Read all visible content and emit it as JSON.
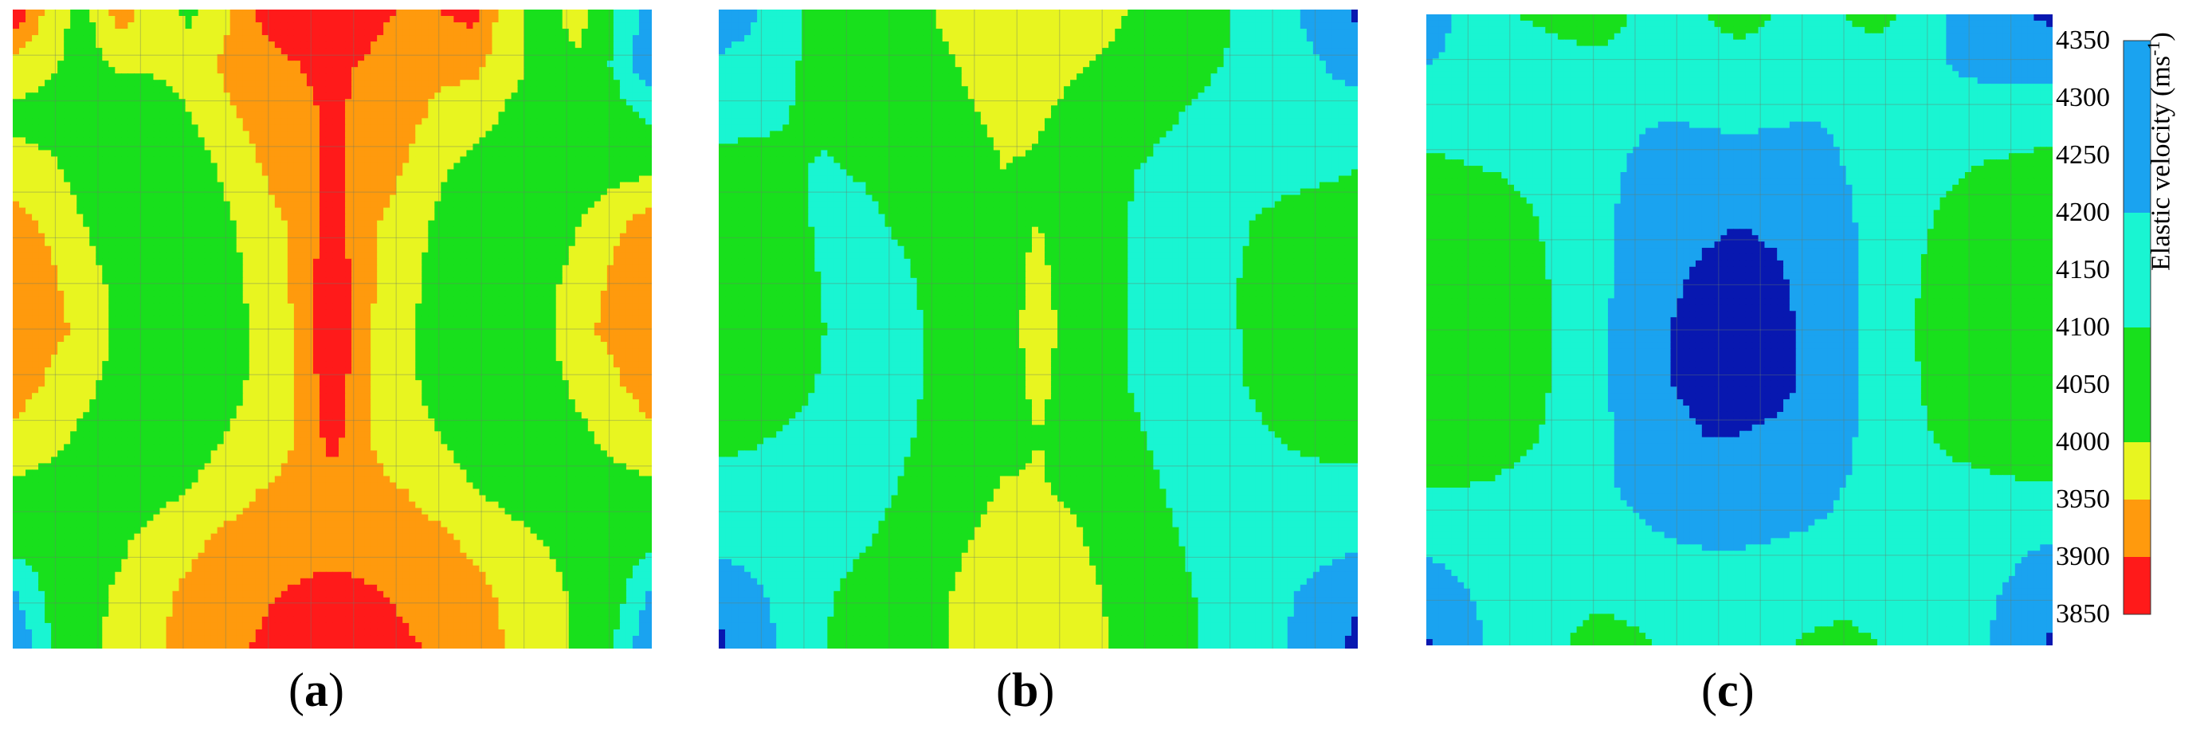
{
  "chart_data": [
    {
      "type": "heatmap",
      "panel_label": "a",
      "grid": true,
      "field": [
        [
          3850,
          3970,
          4020,
          3920,
          3980,
          4010,
          3960,
          3890,
          3870,
          3860,
          3880,
          3905,
          3900,
          3880,
          3990,
          4020,
          3970,
          4100,
          4250
        ],
        [
          3970,
          3990,
          4020,
          3990,
          3990,
          3980,
          3940,
          3915,
          3900,
          3890,
          3905,
          3930,
          3940,
          3940,
          3980,
          4020,
          4010,
          4120,
          4300
        ],
        [
          4010,
          4020,
          4030,
          4040,
          4030,
          4000,
          3960,
          3930,
          3915,
          3890,
          3915,
          3935,
          3960,
          3970,
          4010,
          4030,
          4040,
          4060,
          4120
        ],
        [
          3980,
          3990,
          4020,
          4050,
          4060,
          4030,
          3990,
          3950,
          3920,
          3890,
          3920,
          3950,
          3990,
          4020,
          4050,
          4060,
          4040,
          4020,
          4010
        ],
        [
          3925,
          3960,
          4000,
          4040,
          4060,
          4050,
          4010,
          3970,
          3940,
          3880,
          3940,
          3970,
          4010,
          4050,
          4060,
          4040,
          4000,
          3960,
          3925
        ],
        [
          3910,
          3940,
          3975,
          4020,
          4050,
          4050,
          4020,
          3980,
          3940,
          3860,
          3940,
          3980,
          4020,
          4050,
          4050,
          4020,
          3975,
          3940,
          3910
        ],
        [
          3910,
          3935,
          3960,
          4010,
          4050,
          4050,
          4020,
          3990,
          3945,
          3855,
          3945,
          3990,
          4020,
          4050,
          4050,
          4010,
          3960,
          3935,
          3910
        ],
        [
          3925,
          3955,
          3985,
          4020,
          4050,
          4050,
          4020,
          3985,
          3950,
          3860,
          3950,
          3985,
          4020,
          4050,
          4050,
          4020,
          3985,
          3955,
          3925
        ],
        [
          3960,
          3980,
          4010,
          4030,
          4040,
          4030,
          4000,
          3975,
          3950,
          3880,
          3950,
          3975,
          4000,
          4030,
          4040,
          4030,
          4010,
          3980,
          3960
        ],
        [
          4010,
          4020,
          4030,
          4030,
          4020,
          4000,
          3970,
          3950,
          3940,
          3925,
          3940,
          3950,
          3970,
          4000,
          4020,
          4030,
          4030,
          4020,
          4010
        ],
        [
          4060,
          4050,
          4030,
          4010,
          3980,
          3960,
          3940,
          3925,
          3915,
          3910,
          3915,
          3925,
          3940,
          3960,
          3980,
          4000,
          4020,
          4040,
          4080
        ],
        [
          4220,
          4080,
          4020,
          3990,
          3960,
          3940,
          3920,
          3905,
          3895,
          3890,
          3895,
          3905,
          3915,
          3935,
          3960,
          3985,
          4010,
          4060,
          4220
        ],
        [
          4300,
          4120,
          4010,
          3990,
          3960,
          3930,
          3910,
          3895,
          3880,
          3850,
          3880,
          3895,
          3905,
          3925,
          3955,
          3980,
          4010,
          4120,
          4300
        ]
      ]
    },
    {
      "type": "heatmap",
      "panel_label": "b",
      "grid": true,
      "field": [
        [
          4300,
          4220,
          4120,
          4060,
          4030,
          4010,
          4000,
          3980,
          3960,
          3965,
          3980,
          3990,
          4010,
          4040,
          4080,
          4120,
          4180,
          4250,
          4320
        ],
        [
          4180,
          4150,
          4110,
          4070,
          4040,
          4020,
          4010,
          3995,
          3985,
          3985,
          3995,
          4005,
          4020,
          4050,
          4090,
          4130,
          4160,
          4200,
          4260
        ],
        [
          4140,
          4120,
          4100,
          4080,
          4060,
          4040,
          4020,
          4005,
          3990,
          3995,
          4010,
          4030,
          4060,
          4100,
          4140,
          4160,
          4160,
          4150,
          4140
        ],
        [
          4060,
          4070,
          4090,
          4110,
          4090,
          4060,
          4040,
          4020,
          4000,
          4005,
          4030,
          4070,
          4110,
          4140,
          4160,
          4160,
          4140,
          4120,
          4100
        ],
        [
          4030,
          4040,
          4070,
          4120,
          4130,
          4090,
          4060,
          4040,
          4015,
          4000,
          4040,
          4080,
          4120,
          4150,
          4160,
          4100,
          4060,
          4050,
          4040
        ],
        [
          4020,
          4030,
          4060,
          4110,
          4140,
          4120,
          4080,
          4050,
          4030,
          3985,
          4030,
          4080,
          4120,
          4150,
          4140,
          4080,
          4040,
          4030,
          4020
        ],
        [
          4020,
          4030,
          4055,
          4100,
          4140,
          4130,
          4090,
          4060,
          4030,
          3970,
          4030,
          4080,
          4120,
          4150,
          4140,
          4080,
          4040,
          4030,
          4020
        ],
        [
          4040,
          4050,
          4070,
          4110,
          4150,
          4130,
          4090,
          4060,
          4030,
          3985,
          4030,
          4080,
          4120,
          4150,
          4140,
          4090,
          4050,
          4040,
          4040
        ],
        [
          4080,
          4090,
          4110,
          4130,
          4150,
          4120,
          4080,
          4050,
          4020,
          4000,
          4020,
          4060,
          4100,
          4130,
          4140,
          4120,
          4090,
          4070,
          4060
        ],
        [
          4130,
          4130,
          4140,
          4150,
          4140,
          4100,
          4060,
          4020,
          3995,
          3995,
          4010,
          4040,
          4080,
          4120,
          4150,
          4150,
          4140,
          4130,
          4130
        ],
        [
          4170,
          4160,
          4150,
          4140,
          4110,
          4070,
          4030,
          4000,
          3985,
          3985,
          3990,
          4020,
          4060,
          4100,
          4140,
          4160,
          4160,
          4170,
          4180
        ],
        [
          4280,
          4220,
          4160,
          4110,
          4070,
          4040,
          4010,
          3990,
          3970,
          3965,
          3980,
          4005,
          4040,
          4080,
          4130,
          4170,
          4190,
          4230,
          4290
        ],
        [
          4320,
          4250,
          4180,
          4100,
          4060,
          4030,
          4010,
          3985,
          3965,
          3960,
          3975,
          4000,
          4030,
          4070,
          4120,
          4160,
          4200,
          4260,
          4330
        ]
      ]
    },
    {
      "type": "heatmap",
      "panel_label": "c",
      "grid": true,
      "field": [
        [
          4270,
          4180,
          4120,
          4090,
          4060,
          4040,
          4110,
          4130,
          4100,
          4040,
          4100,
          4130,
          4100,
          4060,
          4140,
          4200,
          4260,
          4290,
          4320
        ],
        [
          4200,
          4170,
          4160,
          4150,
          4140,
          4140,
          4160,
          4170,
          4170,
          4160,
          4170,
          4180,
          4160,
          4150,
          4170,
          4200,
          4220,
          4230,
          4240
        ],
        [
          4130,
          4140,
          4150,
          4170,
          4180,
          4190,
          4190,
          4200,
          4190,
          4180,
          4190,
          4200,
          4190,
          4180,
          4170,
          4160,
          4150,
          4140,
          4130
        ],
        [
          4080,
          4090,
          4100,
          4120,
          4150,
          4180,
          4210,
          4240,
          4250,
          4250,
          4250,
          4240,
          4200,
          4170,
          4140,
          4110,
          4090,
          4080,
          4070
        ],
        [
          4040,
          4040,
          4060,
          4090,
          4130,
          4180,
          4230,
          4270,
          4290,
          4300,
          4290,
          4270,
          4220,
          4160,
          4120,
          4080,
          4060,
          4050,
          4040
        ],
        [
          4020,
          4020,
          4040,
          4080,
          4120,
          4180,
          4240,
          4290,
          4310,
          4320,
          4310,
          4280,
          4230,
          4160,
          4110,
          4060,
          4040,
          4030,
          4020
        ],
        [
          4020,
          4020,
          4030,
          4070,
          4120,
          4180,
          4250,
          4300,
          4320,
          4340,
          4320,
          4290,
          4230,
          4160,
          4100,
          4050,
          4030,
          4020,
          4020
        ],
        [
          4020,
          4020,
          4035,
          4075,
          4120,
          4180,
          4250,
          4300,
          4320,
          4330,
          4320,
          4290,
          4230,
          4160,
          4110,
          4060,
          4040,
          4030,
          4030
        ],
        [
          4040,
          4040,
          4060,
          4090,
          4130,
          4180,
          4240,
          4280,
          4300,
          4300,
          4290,
          4270,
          4220,
          4160,
          4120,
          4080,
          4060,
          4050,
          4050
        ],
        [
          4100,
          4100,
          4110,
          4130,
          4150,
          4180,
          4220,
          4250,
          4260,
          4260,
          4250,
          4230,
          4200,
          4170,
          4150,
          4130,
          4120,
          4110,
          4110
        ],
        [
          4180,
          4160,
          4150,
          4150,
          4160,
          4170,
          4180,
          4200,
          4210,
          4210,
          4200,
          4190,
          4180,
          4170,
          4160,
          4160,
          4170,
          4180,
          4200
        ],
        [
          4250,
          4210,
          4170,
          4140,
          4120,
          4110,
          4120,
          4140,
          4150,
          4150,
          4140,
          4130,
          4120,
          4130,
          4140,
          4160,
          4180,
          4220,
          4270
        ],
        [
          4310,
          4250,
          4180,
          4140,
          4100,
          4080,
          4090,
          4110,
          4120,
          4130,
          4110,
          4090,
          4080,
          4100,
          4130,
          4160,
          4190,
          4250,
          4320
        ]
      ]
    }
  ],
  "colorbar": {
    "title": "Elastic velocity (ms",
    "title_sup": "-1",
    "title_close": ")",
    "ticks": [
      "4350",
      "4300",
      "4250",
      "4200",
      "4150",
      "4100",
      "4050",
      "4000",
      "3950",
      "3900",
      "3850"
    ],
    "levels": [
      3850,
      3900,
      3950,
      4000,
      4100,
      4200,
      4350
    ],
    "colors": [
      "#ff1a1a",
      "#ff9a0d",
      "#e8f520",
      "#18e01c",
      "#19f5d2",
      "#1aa3f0",
      "#0a1fd8"
    ],
    "dark_color": "#0818b0"
  },
  "captions": [
    {
      "open": "(",
      "letter": "a",
      "close": ")"
    },
    {
      "open": "(",
      "letter": "b",
      "close": ")"
    },
    {
      "open": "(",
      "letter": "c",
      "close": ")"
    }
  ]
}
